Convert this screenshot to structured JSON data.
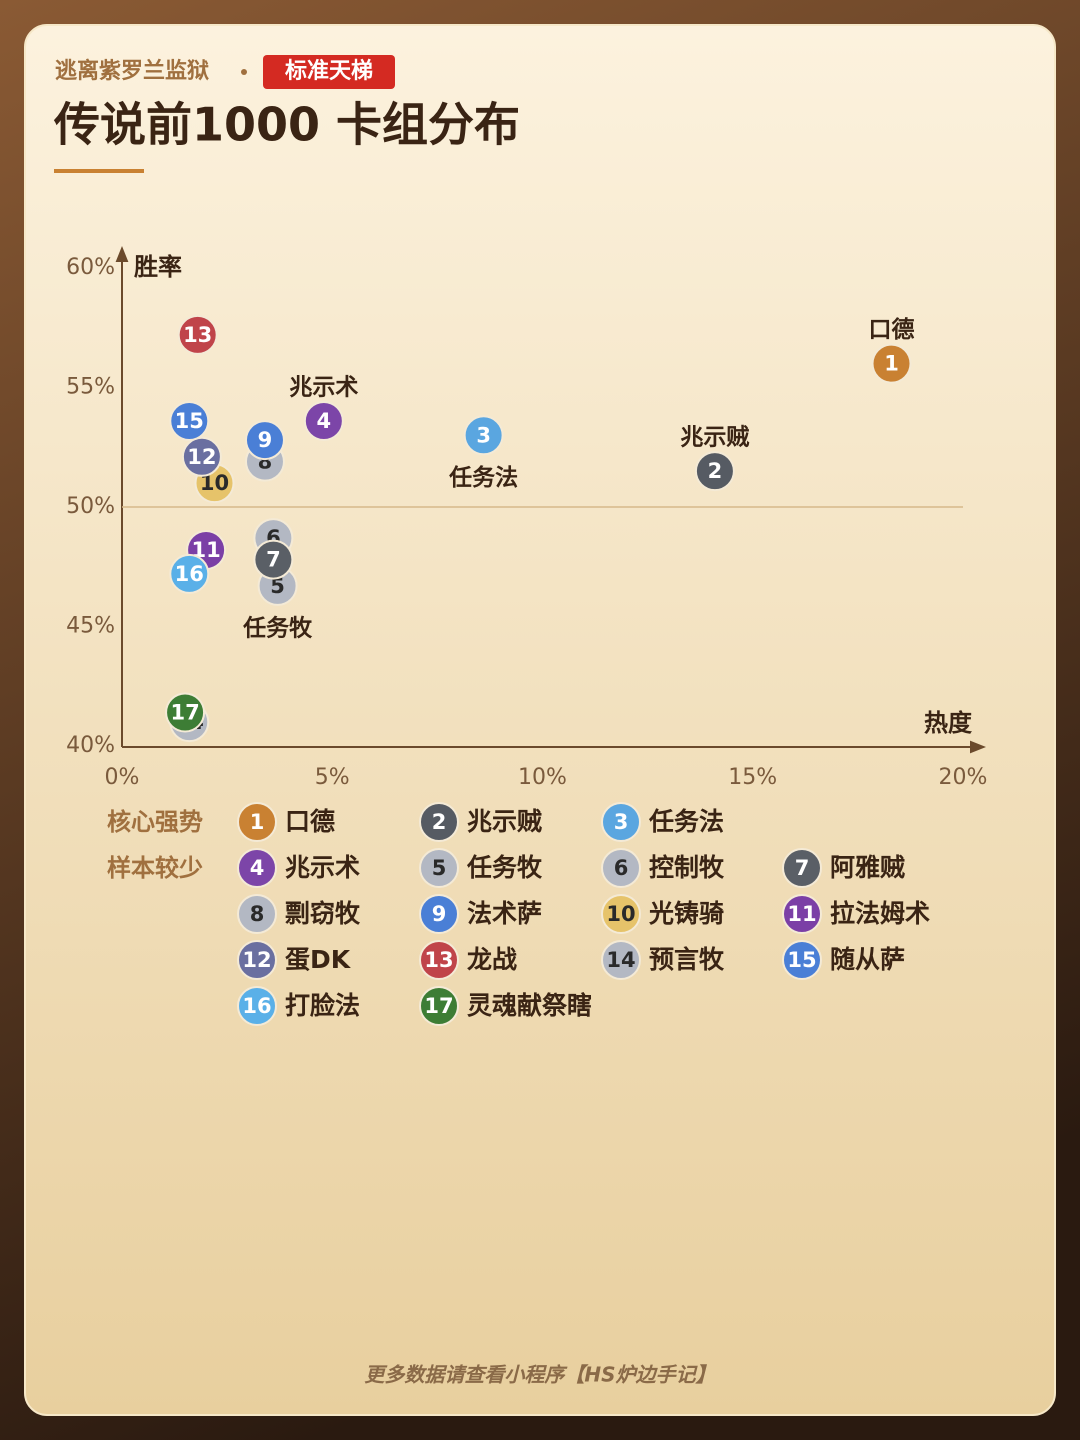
{
  "chart_data": {
    "type": "scatter",
    "subtitle": "逃离紫罗兰监狱",
    "badge": "标准天梯",
    "title": "传说前1000 卡组分布",
    "xlabel": "热度",
    "ylabel": "胜率",
    "footer": "更多数据请查看小程序【HS炉边手记】",
    "xlim": [
      0,
      20
    ],
    "ylim": [
      40,
      60
    ],
    "xticks": [
      {
        "value": 0,
        "label": "0%"
      },
      {
        "value": 5,
        "label": "5%"
      },
      {
        "value": 10,
        "label": "10%"
      },
      {
        "value": 15,
        "label": "15%"
      },
      {
        "value": 20,
        "label": "20%"
      }
    ],
    "yticks": [
      {
        "value": 40,
        "label": "40%"
      },
      {
        "value": 45,
        "label": "45%"
      },
      {
        "value": 50,
        "label": "50%"
      },
      {
        "value": 55,
        "label": "55%"
      },
      {
        "value": 60,
        "label": "60%"
      }
    ],
    "reference_line": 50,
    "legend_groups": [
      "核心强势",
      "样本较少"
    ],
    "series": [
      {
        "id": "1",
        "name": "口德",
        "color": "#c98132",
        "x": 18.3,
        "y": 56.0,
        "group": 0,
        "label_position": "above"
      },
      {
        "id": "2",
        "name": "兆示贼",
        "color": "#565b63",
        "x": 14.1,
        "y": 51.5,
        "group": 0,
        "label_position": "above"
      },
      {
        "id": "3",
        "name": "任务法",
        "color": "#5aa6e0",
        "x": 8.6,
        "y": 53.0,
        "group": 0,
        "label_position": "below"
      },
      {
        "id": "4",
        "name": "兆示术",
        "color": "#7c45a8",
        "x": 4.8,
        "y": 53.6,
        "group": 1,
        "label_position": "above"
      },
      {
        "id": "5",
        "name": "任务牧",
        "color": "#b3b8c3",
        "x": 3.7,
        "y": 46.7,
        "group": 1,
        "label_position": "below"
      },
      {
        "id": "6",
        "name": "控制牧",
        "color": "#b3b8c3",
        "x": 3.6,
        "y": 48.7,
        "group": 1
      },
      {
        "id": "7",
        "name": "阿雅贼",
        "color": "#5a5f66",
        "x": 3.6,
        "y": 47.8,
        "group": 1
      },
      {
        "id": "8",
        "name": "剽窃牧",
        "color": "#b3b8c3",
        "x": 3.4,
        "y": 51.9,
        "group": 1
      },
      {
        "id": "9",
        "name": "法术萨",
        "color": "#4a7fd6",
        "x": 3.4,
        "y": 52.8,
        "group": 1
      },
      {
        "id": "10",
        "name": "光铸骑",
        "color": "#e6c36a",
        "x": 2.2,
        "y": 51.0,
        "group": 1
      },
      {
        "id": "11",
        "name": "拉法姆术",
        "color": "#7b3fa6",
        "x": 2.0,
        "y": 48.2,
        "group": 1
      },
      {
        "id": "12",
        "name": "蛋DK",
        "color": "#6a6fa0",
        "x": 1.9,
        "y": 52.1,
        "group": 1
      },
      {
        "id": "13",
        "name": "龙战",
        "color": "#c0444a",
        "x": 1.8,
        "y": 57.2,
        "group": 1
      },
      {
        "id": "14",
        "name": "预言牧",
        "color": "#b3b8c3",
        "x": 1.6,
        "y": 41.0,
        "group": 1
      },
      {
        "id": "15",
        "name": "随从萨",
        "color": "#4a7fd6",
        "x": 1.6,
        "y": 53.6,
        "group": 1
      },
      {
        "id": "16",
        "name": "打脸法",
        "color": "#5ab0e8",
        "x": 1.6,
        "y": 47.2,
        "group": 1
      },
      {
        "id": "17",
        "name": "灵魂献祭瞎",
        "color": "#3d7d35",
        "x": 1.5,
        "y": 41.4,
        "group": 1
      }
    ]
  }
}
